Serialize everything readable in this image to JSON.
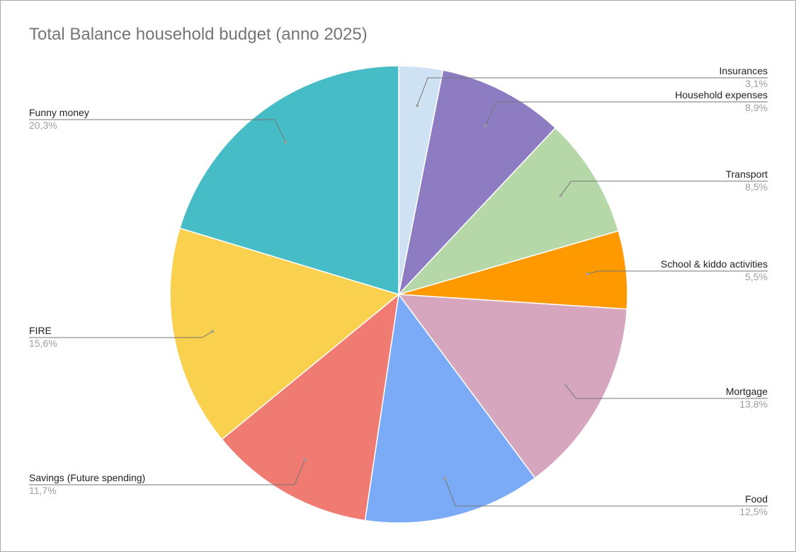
{
  "chart_data": {
    "type": "pie",
    "title": "Total Balance household budget (anno 2025)",
    "legend": "labels-outside",
    "start_angle_deg": 0,
    "direction": "clockwise",
    "slices": [
      {
        "label": "Insurances",
        "percent_label": "3,1%",
        "value": 3.1,
        "color": "#cfe2f3"
      },
      {
        "label": "Household expenses",
        "percent_label": "8,9%",
        "value": 8.9,
        "color": "#8e7cc3"
      },
      {
        "label": "Transport",
        "percent_label": "8,5%",
        "value": 8.5,
        "color": "#b6d7a8"
      },
      {
        "label": "School & kiddo activities",
        "percent_label": "5,5%",
        "value": 5.5,
        "color": "#ff9900"
      },
      {
        "label": "Mortgage",
        "percent_label": "13,8%",
        "value": 13.8,
        "color": "#d5a6bd"
      },
      {
        "label": "Food",
        "percent_label": "12,5%",
        "value": 12.5,
        "color": "#7baaf7"
      },
      {
        "label": "Savings (Future spending)",
        "percent_label": "11,7%",
        "value": 11.7,
        "color": "#f07b72"
      },
      {
        "label": "FIRE",
        "percent_label": "15,6%",
        "value": 15.6,
        "color": "#fad04f"
      },
      {
        "label": "Funny money",
        "percent_label": "20,3%",
        "value": 20.3,
        "color": "#46bdc6"
      }
    ]
  }
}
